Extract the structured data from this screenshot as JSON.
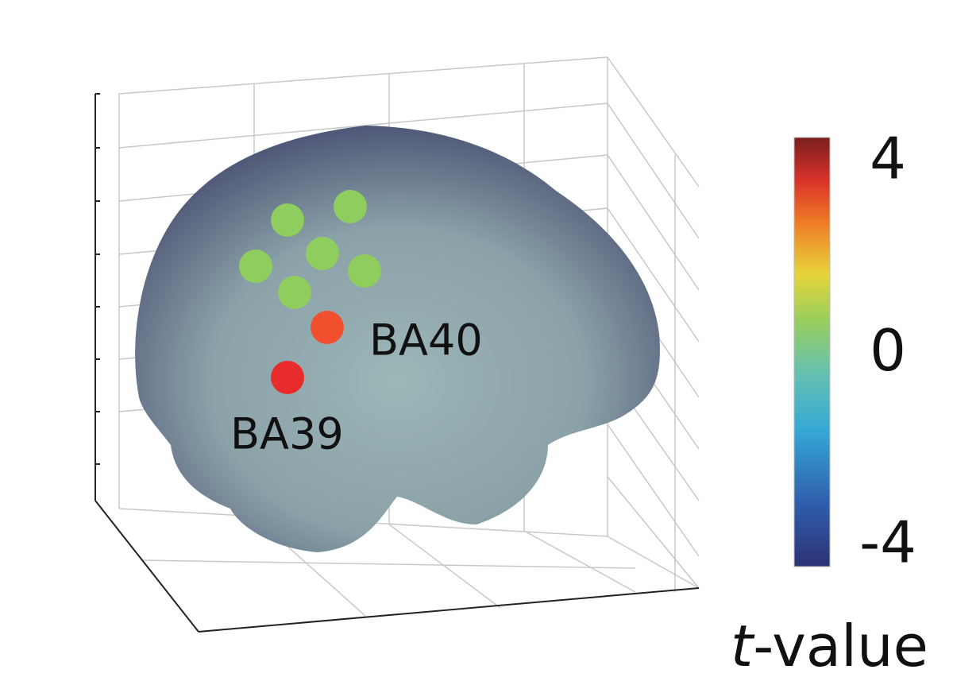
{
  "labels": [
    "BA40",
    "BA39"
  ],
  "colorbar": {
    "ticks": [
      4,
      0,
      -4
    ],
    "label_variable": "t",
    "label_suffix": "-value"
  }
}
